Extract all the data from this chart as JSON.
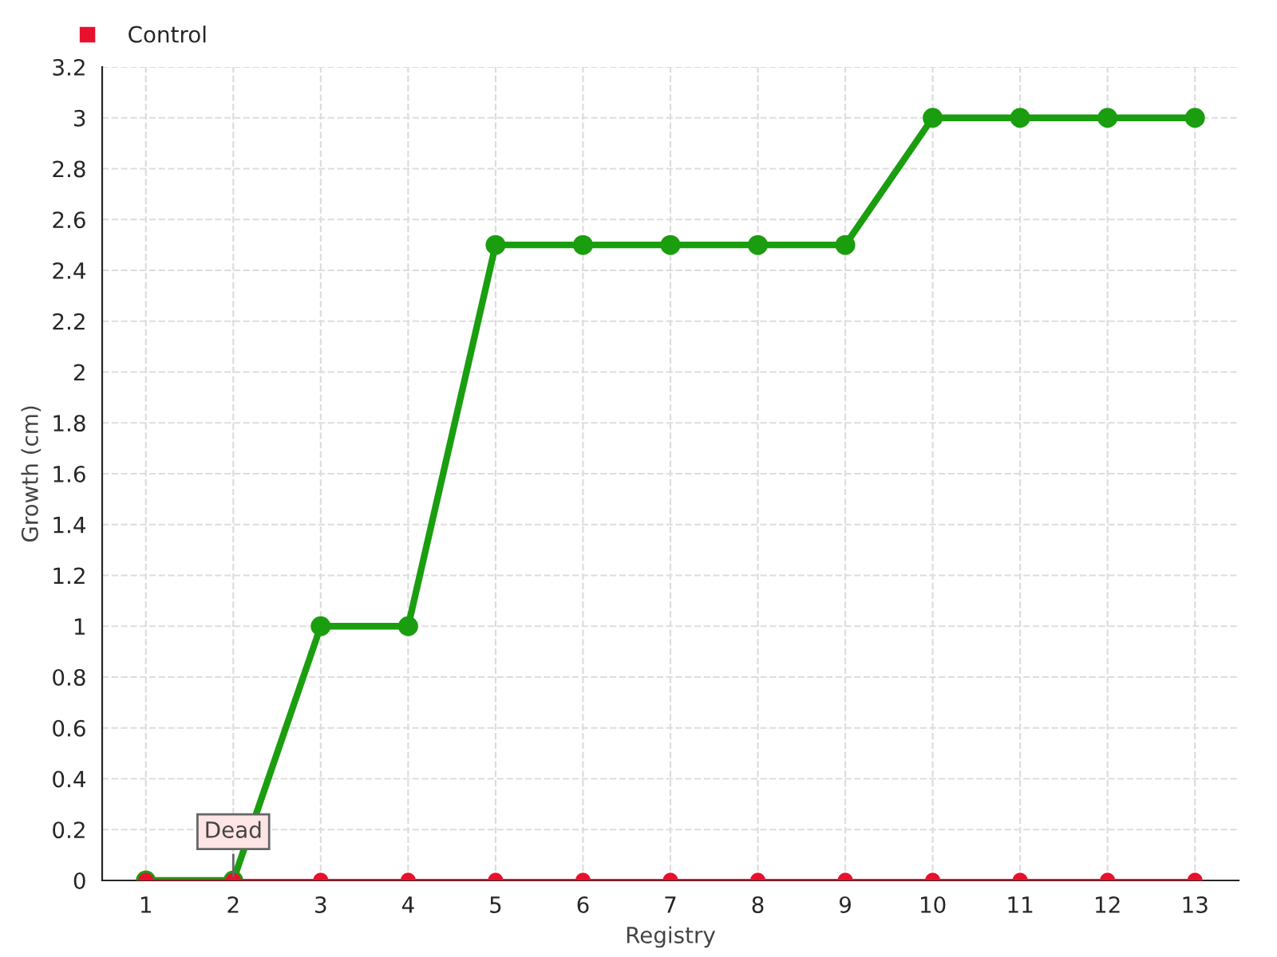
{
  "chart_data": {
    "type": "line",
    "xlabel": "Registry",
    "ylabel": "Growth (cm)",
    "categories": [
      "1",
      "2",
      "3",
      "4",
      "5",
      "6",
      "7",
      "8",
      "9",
      "10",
      "11",
      "12",
      "13"
    ],
    "series": [
      {
        "color": "#1a9e0f",
        "values": [
          0,
          0,
          1,
          1,
          2.5,
          2.5,
          2.5,
          2.5,
          2.5,
          3,
          3,
          3,
          3
        ]
      },
      {
        "name": "Control",
        "color": "#e8112d",
        "values": [
          0,
          0,
          0,
          0,
          0,
          0,
          0,
          0,
          0,
          0,
          0,
          0,
          0
        ]
      }
    ],
    "ylim": [
      0,
      3.2
    ],
    "yticks": [
      0,
      0.2,
      0.4,
      0.6,
      0.8,
      1,
      1.2,
      1.4,
      1.6,
      1.8,
      2,
      2.2,
      2.4,
      2.6,
      2.8,
      3,
      3.2
    ],
    "annotations": [
      {
        "text": "Dead",
        "x": "2",
        "y": 0
      }
    ],
    "grid": true,
    "legend": "top left",
    "marker": "circle",
    "line_style": "solid"
  }
}
